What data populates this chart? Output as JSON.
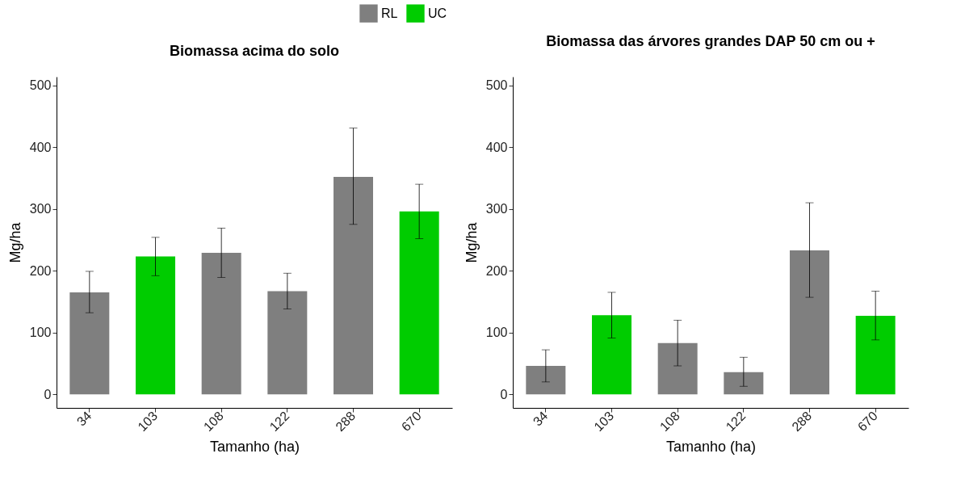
{
  "chart_data": [
    {
      "type": "bar",
      "title": "Biomassa acima do solo",
      "xlabel": "Tamanho (ha)",
      "ylabel": "Mg/ha",
      "categories": [
        "34",
        "103",
        "108",
        "122",
        "288",
        "670"
      ],
      "series": [
        {
          "name": "RL",
          "color": "#7f7f7f",
          "values": [
            165,
            null,
            229,
            167,
            352,
            null
          ],
          "errors": [
            [
              132,
              199
            ],
            null,
            [
              189,
              269
            ],
            [
              138,
              196
            ],
            [
              275,
              431
            ],
            null
          ]
        },
        {
          "name": "UC",
          "color": "#00cc00",
          "values": [
            null,
            223,
            null,
            null,
            null,
            296
          ],
          "errors": [
            null,
            [
              192,
              254
            ],
            null,
            null,
            null,
            [
              252,
              340
            ]
          ]
        }
      ],
      "ylim": [
        -22,
        514
      ],
      "yticks": [
        0,
        100,
        200,
        300,
        400,
        500
      ],
      "legend": "top right",
      "grid": false
    },
    {
      "type": "bar",
      "title": "Biomassa das árvores grandes DAP 50 cm ou +",
      "xlabel": "Tamanho (ha)",
      "ylabel": "Mg/ha",
      "categories": [
        "34",
        "103",
        "108",
        "122",
        "288",
        "670"
      ],
      "series": [
        {
          "color": "#7f7f7f",
          "values": [
            46,
            null,
            83,
            36,
            233,
            null
          ],
          "errors": [
            [
              20,
              72
            ],
            null,
            [
              46,
              120
            ],
            [
              13,
              60
            ],
            [
              157,
              310
            ],
            null
          ]
        },
        {
          "color": "#00cc00",
          "values": [
            null,
            128,
            null,
            null,
            null,
            127
          ],
          "errors": [
            null,
            [
              91,
              165
            ],
            null,
            null,
            null,
            [
              88,
              167
            ]
          ]
        }
      ],
      "ylim": [
        -22,
        514
      ],
      "yticks": [
        0,
        100,
        200,
        300,
        400,
        500
      ],
      "grid": false
    }
  ]
}
